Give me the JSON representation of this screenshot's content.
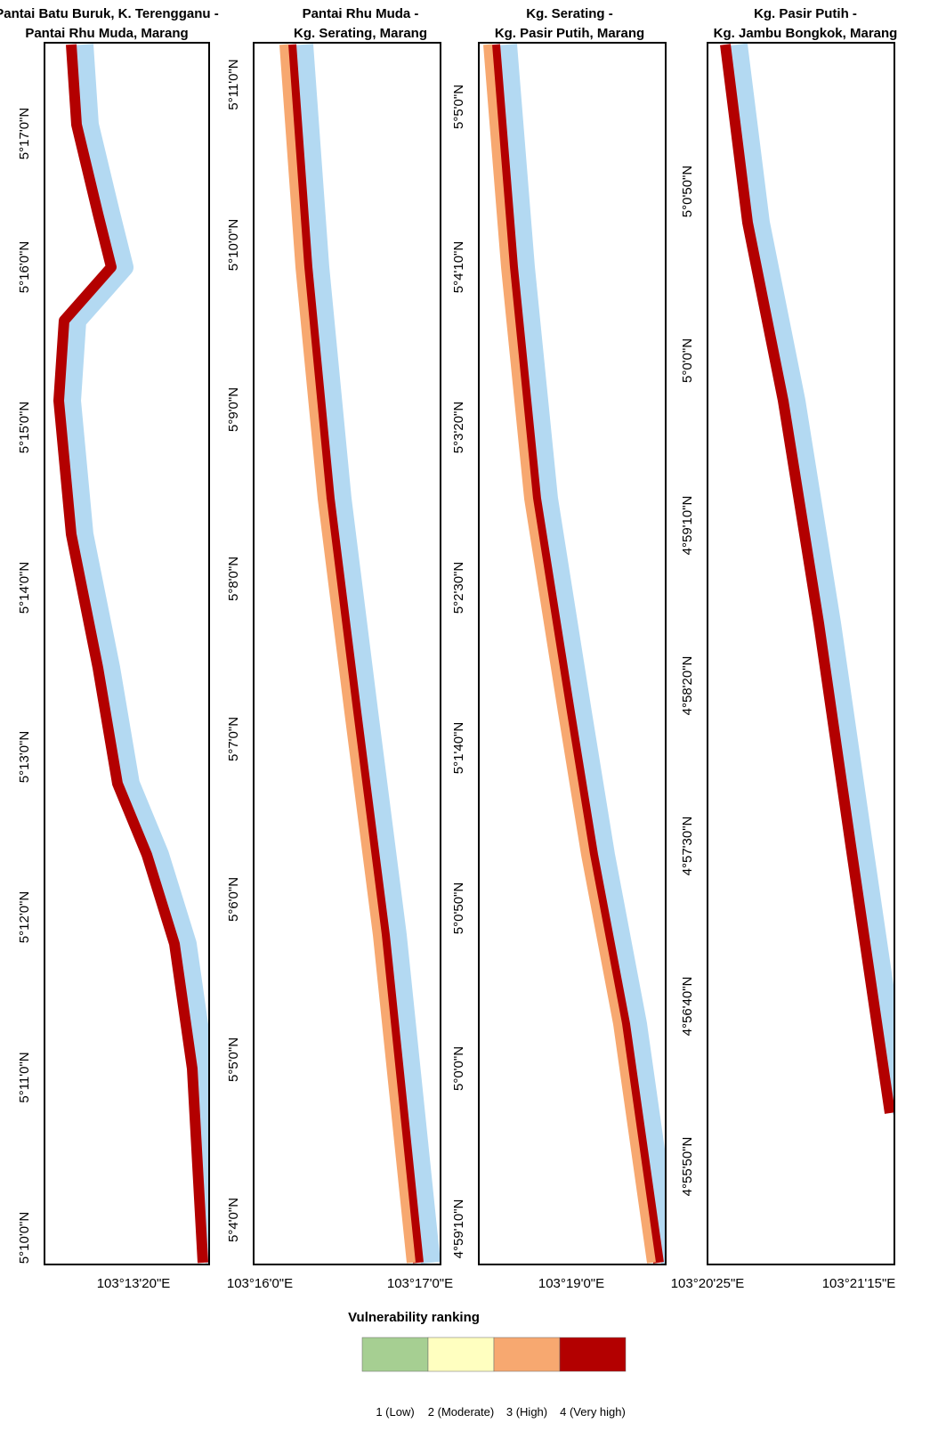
{
  "panels": [
    {
      "title": [
        "Pantai Batu Buruk, K. Terengganu -",
        "Pantai Rhu Muda, Marang"
      ],
      "lat_labels": [
        "5°17'0\"N",
        "5°16'0\"N",
        "5°15'0\"N",
        "5°14'0\"N",
        "5°13'0\"N",
        "5°12'0\"N",
        "5°11'0\"N",
        "5°10'0\"N"
      ],
      "lon_labels": [
        "103°13'20\"E"
      ]
    },
    {
      "title": [
        "Pantai Rhu Muda -",
        "Kg. Serating, Marang"
      ],
      "lat_labels": [
        "5°11'0\"N",
        "5°10'0\"N",
        "5°9'0\"N",
        "5°8'0\"N",
        "5°7'0\"N",
        "5°6'0\"N",
        "5°5'0\"N",
        "5°4'0\"N"
      ],
      "lon_labels": [
        "103°16'0\"E",
        "103°17'0\"E"
      ]
    },
    {
      "title": [
        "Kg. Serating -",
        "Kg. Pasir Putih, Marang"
      ],
      "lat_labels": [
        "5°5'0\"N",
        "5°4'10\"N",
        "5°3'20\"N",
        "5°2'30\"N",
        "5°1'40\"N",
        "5°0'50\"N",
        "5°0'0\"N",
        "4°59'10\"N"
      ],
      "lon_labels": [
        "103°19'0\"E"
      ]
    },
    {
      "title": [
        "Kg. Pasir Putih -",
        "Kg. Jambu Bongkok, Marang"
      ],
      "lat_labels": [
        "5°0'50\"N",
        "5°0'0\"N",
        "4°59'10\"N",
        "4°58'20\"N",
        "4°57'30\"N",
        "4°56'40\"N",
        "4°55'50\"N"
      ],
      "lon_labels": [
        "103°20'25\"E",
        "103°21'15\"E"
      ]
    }
  ],
  "legend": {
    "title": "Vulnerability ranking",
    "classes": [
      {
        "label": "1 (Low)",
        "color": "#a6cf92"
      },
      {
        "label": "2 (Moderate)",
        "color": "#ffffc0"
      },
      {
        "label": "3 (High)",
        "color": "#f7a870"
      },
      {
        "label": "4 (Very high)",
        "color": "#b30000"
      }
    ]
  }
}
